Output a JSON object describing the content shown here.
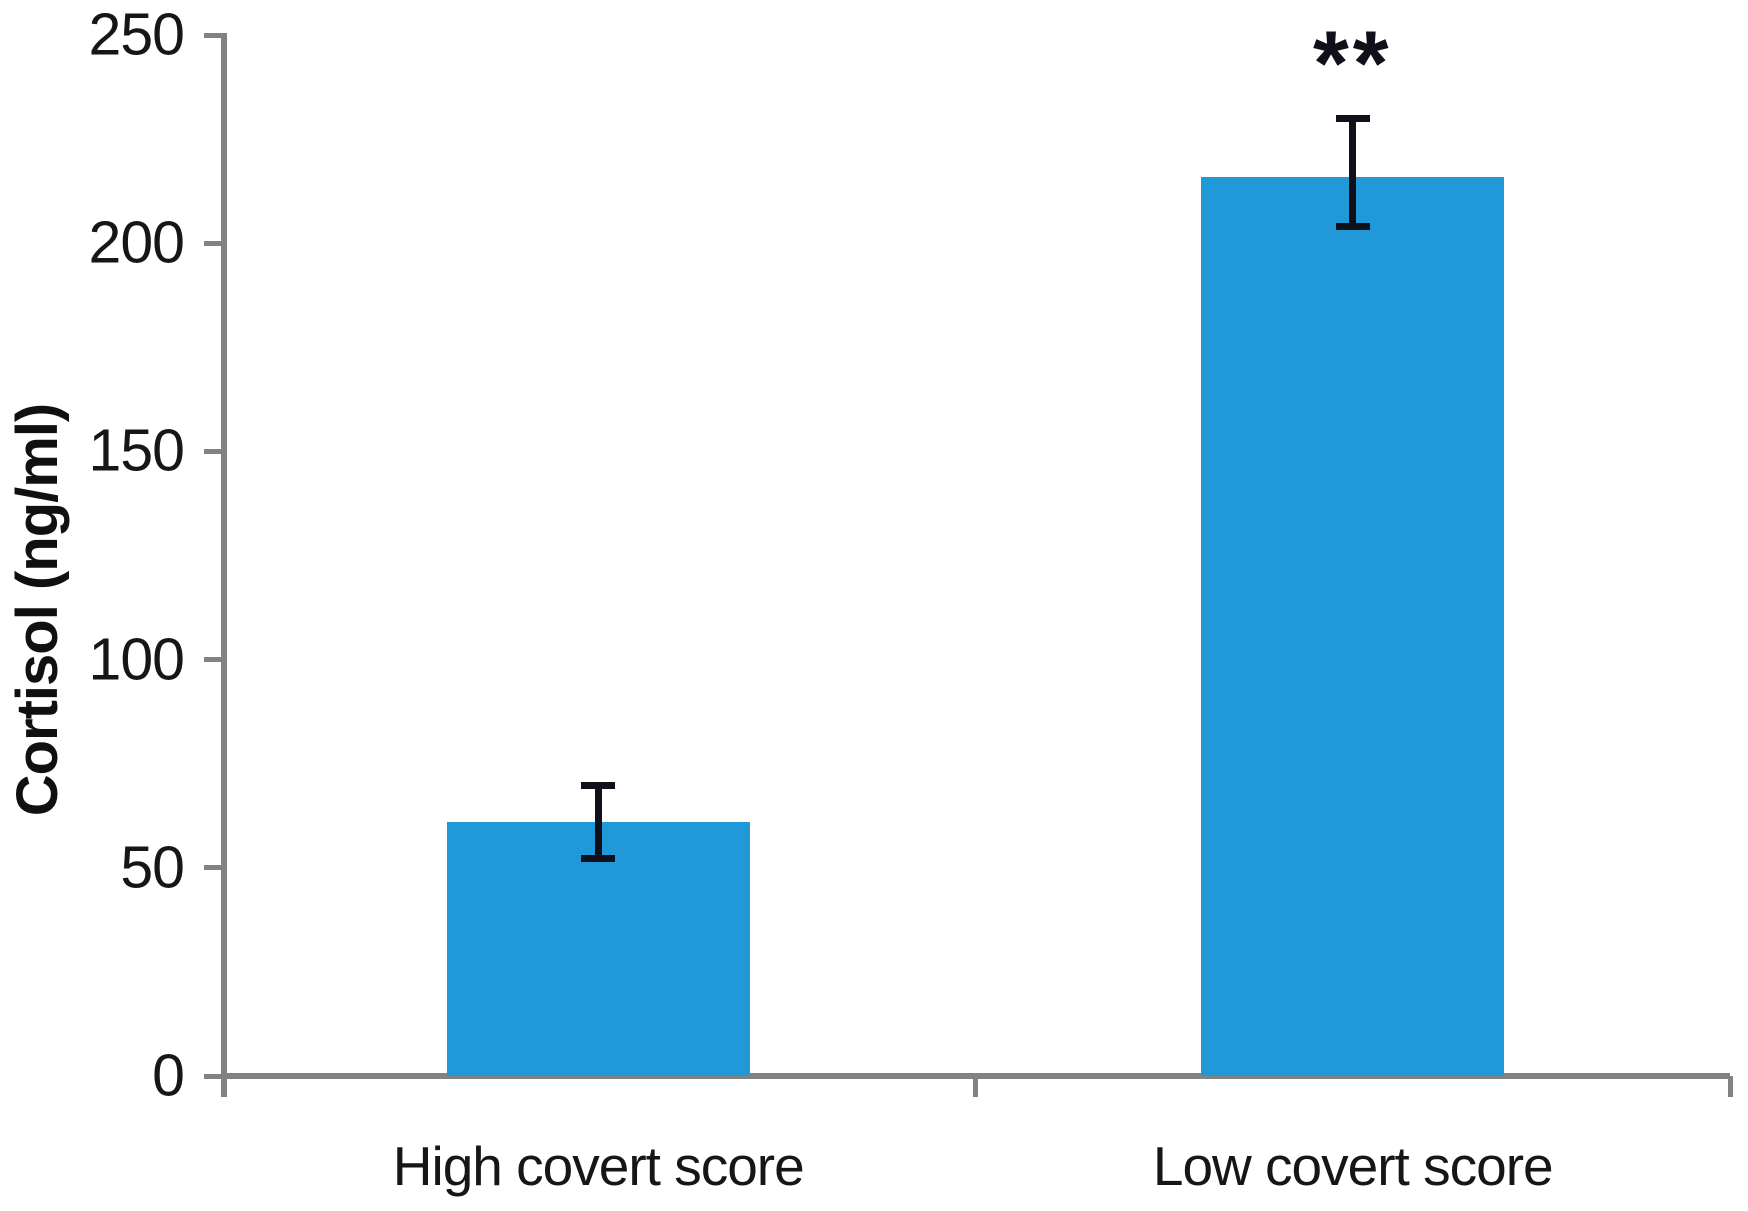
{
  "chart_data": {
    "type": "bar",
    "title": "",
    "xlabel": "",
    "ylabel": "Cortisol (ng/ml)",
    "categories": [
      "High covert score",
      "Low covert score"
    ],
    "values": [
      61,
      216
    ],
    "error_bars": {
      "upper": [
        70,
        230
      ],
      "lower": [
        52,
        204
      ]
    },
    "annotations": [
      {
        "category_index": 1,
        "text": "**",
        "meaning": "significance-marker"
      }
    ],
    "ylim": [
      0,
      250
    ],
    "yticks": [
      0,
      50,
      100,
      150,
      200,
      250
    ],
    "grid": false,
    "legend": false,
    "bar_color": "#2199d8",
    "axis_color": "#828282",
    "error_bar_color": "#10101a",
    "text_color": "#161616"
  }
}
